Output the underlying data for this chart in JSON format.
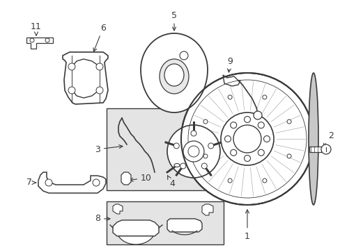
{
  "bg_color": "#ffffff",
  "lc": "#3a3a3a",
  "box_fill": "#e4e4e4",
  "figsize": [
    4.89,
    3.6
  ],
  "dpi": 100,
  "xlim": [
    0,
    489
  ],
  "ylim": [
    0,
    360
  ]
}
